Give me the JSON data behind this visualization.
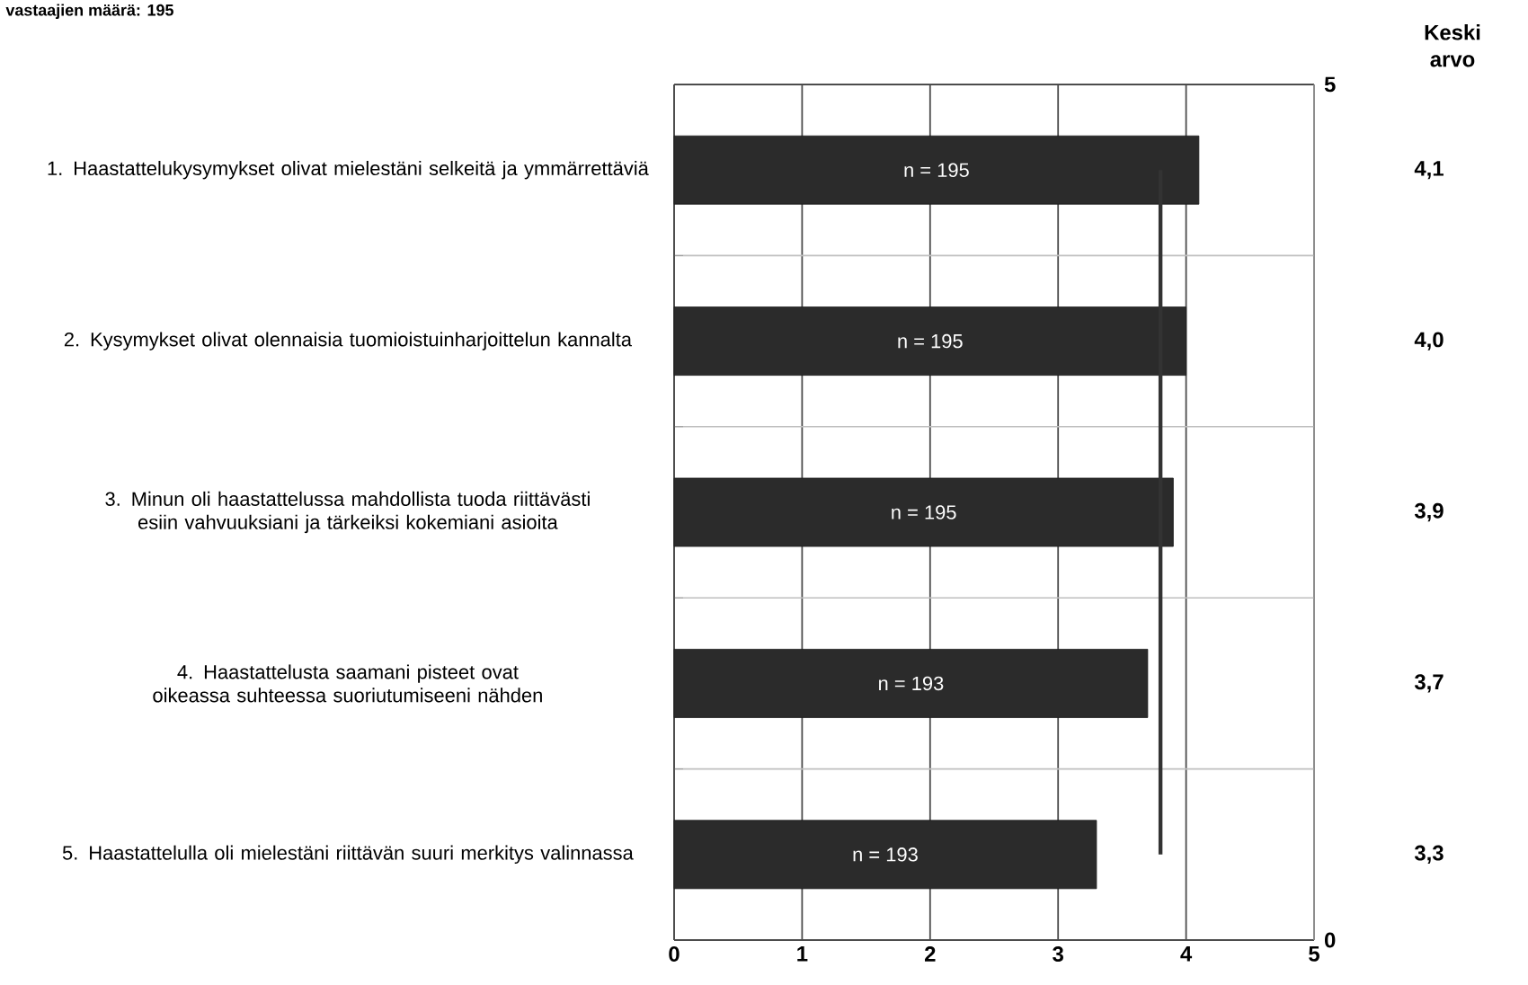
{
  "chart_data": {
    "type": "bar",
    "orientation": "horizontal",
    "title": "vastaajien määrä: 195",
    "categories": [
      "1. Haastattelukysymykset olivat mielestäni selkeitä ja ymmärrettäviä",
      "2. Kysymykset olivat olennaisia tuomioistuinharjoittelun kannalta",
      "3. Minun oli haastattelussa mahdollista tuoda riittävästi esiin vahvuuksiani ja tärkeiksi kokemiani asioita",
      "4. Haastattelusta saamani pisteet ovat oikeassa suhteessa suoriutumiseeni nähden",
      "5. Haastattelulla oli mielestäni riittävän suuri merkitys valinnassa"
    ],
    "values": [
      4.1,
      4.0,
      3.9,
      3.7,
      3.3
    ],
    "value_labels": [
      "4,1",
      "4,0",
      "3,9",
      "3,7",
      "3,3"
    ],
    "color": "#2b2b2b",
    "xlim": [
      0,
      5
    ],
    "xticks": [
      0,
      1,
      2,
      3,
      4,
      5
    ],
    "y2lim": [
      0,
      5
    ],
    "y2ticks": [
      0,
      5
    ],
    "grid": true,
    "ref_lines": [
      {
        "axis": "x",
        "value": 3.8,
        "color": "#333333"
      }
    ],
    "annotations": [
      "Keski arvo",
      "n = 195",
      "n = 195",
      "n = 195",
      "n = 193",
      "n = 193"
    ]
  }
}
